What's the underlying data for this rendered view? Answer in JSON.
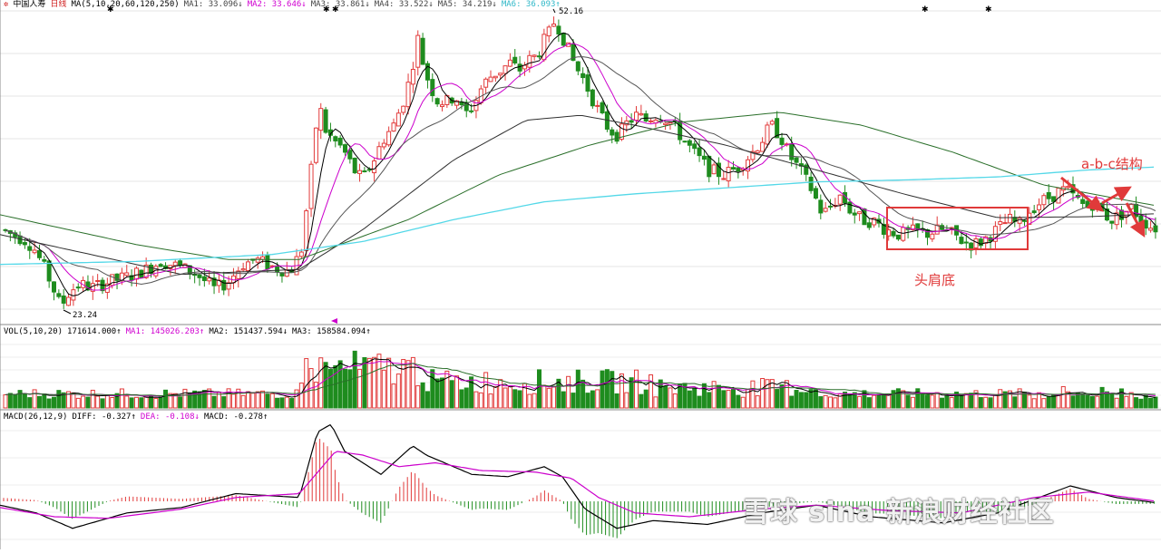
{
  "price_header": {
    "name": "中国人寿",
    "period": "日线",
    "ma_params": "MA(5,10,20,60,120,250)",
    "ma1": "MA1: 33.096↓",
    "ma2": "MA2: 33.646↓",
    "ma3": "MA3: 33.861↓",
    "ma4": "MA4: 33.522↓",
    "ma5": "MA5: 34.219↓",
    "ma6": "MA6: 36.093↑"
  },
  "volume_header": {
    "params": "VOL(5,10,20)",
    "vol": "171614.000↑",
    "ma1": "MA1: 145026.203↑",
    "ma2": "MA2: 151437.594↓",
    "ma3": "MA3: 158584.094↑"
  },
  "macd_header": {
    "params": "MACD(26,12,9)",
    "diff": "DIFF: -0.327↑",
    "dea": "DEA: -0.108↓",
    "macd": "MACD: -0.278↑"
  },
  "annotations": {
    "high_label": "52.16",
    "low_label": "23.24",
    "abc": "a-b-c结构",
    "head_shoulder": "头肩底"
  },
  "watermark": "雪球 sina 新浪财经社区",
  "colors": {
    "up": "#e23b3b",
    "down": "#1e8c1e",
    "ma_short": "#000000",
    "ma_mid": "#cc00cc",
    "ma_long": "#2a6f2a",
    "ma_250": "#54d8e8",
    "annotation": "#e03a3a"
  },
  "chart_data": [
    {
      "type": "candlestick",
      "title": "中国人寿 日线",
      "ylim": [
        22,
        53
      ],
      "price_path": [
        [
          0,
          31.0
        ],
        [
          12,
          30.5
        ],
        [
          25,
          30.0
        ],
        [
          35,
          29.2
        ],
        [
          45,
          27.5
        ],
        [
          55,
          25.5
        ],
        [
          65,
          23.24
        ],
        [
          75,
          24.8
        ],
        [
          85,
          25.5
        ],
        [
          100,
          25.2
        ],
        [
          120,
          25.8
        ],
        [
          140,
          26.3
        ],
        [
          160,
          27.0
        ],
        [
          175,
          27.8
        ],
        [
          195,
          27.3
        ],
        [
          215,
          26.5
        ],
        [
          235,
          25.0
        ],
        [
          250,
          25.8
        ],
        [
          265,
          27.5
        ],
        [
          280,
          28.0
        ],
        [
          300,
          27.2
        ],
        [
          318,
          26.8
        ],
        [
          330,
          28.8
        ],
        [
          340,
          36.0
        ],
        [
          345,
          40.5
        ],
        [
          350,
          43.5
        ],
        [
          357,
          41.0
        ],
        [
          365,
          40.0
        ],
        [
          372,
          39.5
        ],
        [
          380,
          38.5
        ],
        [
          388,
          37.0
        ],
        [
          398,
          36.0
        ],
        [
          410,
          38.0
        ],
        [
          420,
          40.0
        ],
        [
          432,
          41.5
        ],
        [
          445,
          44.5
        ],
        [
          452,
          47.0
        ],
        [
          458,
          50.5
        ],
        [
          465,
          47.5
        ],
        [
          472,
          45.5
        ],
        [
          480,
          44.0
        ],
        [
          490,
          43.8
        ],
        [
          500,
          44.5
        ],
        [
          510,
          42.5
        ],
        [
          520,
          43.5
        ],
        [
          530,
          45.5
        ],
        [
          540,
          46.5
        ],
        [
          550,
          47.0
        ],
        [
          560,
          47.8
        ],
        [
          570,
          47.0
        ],
        [
          580,
          48.0
        ],
        [
          590,
          48.5
        ],
        [
          598,
          50.0
        ],
        [
          605,
          51.0
        ],
        [
          610,
          52.16
        ],
        [
          618,
          50.5
        ],
        [
          625,
          49.0
        ],
        [
          632,
          47.5
        ],
        [
          642,
          46.0
        ],
        [
          652,
          44.0
        ],
        [
          660,
          42.5
        ],
        [
          670,
          41.0
        ],
        [
          680,
          40.5
        ],
        [
          690,
          41.8
        ],
        [
          700,
          42.5
        ],
        [
          710,
          42.0
        ],
        [
          720,
          42.5
        ],
        [
          730,
          42.3
        ],
        [
          740,
          41.5
        ],
        [
          752,
          40.0
        ],
        [
          765,
          38.5
        ],
        [
          780,
          37.0
        ],
        [
          795,
          36.5
        ],
        [
          810,
          37.2
        ],
        [
          825,
          38.5
        ],
        [
          838,
          40.0
        ],
        [
          848,
          41.5
        ],
        [
          858,
          40.5
        ],
        [
          868,
          38.5
        ],
        [
          880,
          37.0
        ],
        [
          893,
          35.0
        ],
        [
          905,
          32.5
        ],
        [
          915,
          33.5
        ],
        [
          925,
          34.5
        ],
        [
          935,
          33.0
        ],
        [
          948,
          32.0
        ],
        [
          962,
          31.8
        ],
        [
          975,
          31.0
        ],
        [
          990,
          30.5
        ],
        [
          1005,
          30.8
        ],
        [
          1020,
          30.6
        ],
        [
          1035,
          31.0
        ],
        [
          1050,
          30.5
        ],
        [
          1060,
          29.8
        ],
        [
          1070,
          29.5
        ],
        [
          1080,
          29.8
        ],
        [
          1090,
          30.5
        ],
        [
          1100,
          31.2
        ],
        [
          1110,
          32.0
        ],
        [
          1122,
          31.5
        ],
        [
          1132,
          32.8
        ],
        [
          1140,
          33.5
        ],
        [
          1150,
          34.0
        ],
        [
          1160,
          34.5
        ],
        [
          1168,
          35.0
        ],
        [
          1176,
          34.8
        ],
        [
          1185,
          34.0
        ],
        [
          1196,
          33.2
        ],
        [
          1205,
          33.8
        ],
        [
          1215,
          32.5
        ],
        [
          1225,
          32.0
        ],
        [
          1235,
          32.6
        ],
        [
          1245,
          33.2
        ],
        [
          1252,
          32.5
        ],
        [
          1260,
          31.8
        ],
        [
          1268,
          31.2
        ]
      ],
      "ma_long_path": [
        [
          0,
          32.5
        ],
        [
          150,
          29.5
        ],
        [
          250,
          28.0
        ],
        [
          330,
          28.0
        ],
        [
          450,
          32.0
        ],
        [
          550,
          36.5
        ],
        [
          650,
          39.5
        ],
        [
          750,
          41.8
        ],
        [
          860,
          42.8
        ],
        [
          950,
          41.5
        ],
        [
          1050,
          38.8
        ],
        [
          1150,
          35.5
        ],
        [
          1275,
          33.4
        ]
      ],
      "ma_250_path": [
        [
          0,
          27.5
        ],
        [
          150,
          27.8
        ],
        [
          300,
          28.5
        ],
        [
          400,
          29.8
        ],
        [
          500,
          32.0
        ],
        [
          600,
          33.8
        ],
        [
          700,
          34.6
        ],
        [
          800,
          35.2
        ],
        [
          900,
          35.8
        ],
        [
          1000,
          36.0
        ],
        [
          1100,
          36.3
        ],
        [
          1200,
          37.0
        ],
        [
          1275,
          37.3
        ]
      ],
      "ma_60_path": [
        [
          0,
          30.5
        ],
        [
          200,
          26.5
        ],
        [
          330,
          27.0
        ],
        [
          400,
          31.0
        ],
        [
          500,
          38.0
        ],
        [
          580,
          42.0
        ],
        [
          640,
          42.5
        ],
        [
          700,
          41.5
        ],
        [
          800,
          39.5
        ],
        [
          900,
          37.0
        ],
        [
          1000,
          34.5
        ],
        [
          1100,
          32.2
        ],
        [
          1200,
          32.3
        ],
        [
          1275,
          32.6
        ]
      ]
    },
    {
      "type": "bar",
      "title": "VOL(5,10,20)",
      "ylim": [
        0,
        100
      ]
    },
    {
      "type": "bar",
      "title": "MACD(26,12,9)",
      "ylim": [
        -1,
        1
      ],
      "diff_path": [
        [
          0,
          -0.05
        ],
        [
          40,
          -0.15
        ],
        [
          80,
          -0.35
        ],
        [
          140,
          -0.15
        ],
        [
          200,
          -0.08
        ],
        [
          260,
          0.1
        ],
        [
          330,
          0.05
        ],
        [
          350,
          0.9
        ],
        [
          365,
          1.0
        ],
        [
          380,
          0.65
        ],
        [
          420,
          0.35
        ],
        [
          455,
          0.72
        ],
        [
          470,
          0.6
        ],
        [
          520,
          0.35
        ],
        [
          560,
          0.32
        ],
        [
          600,
          0.45
        ],
        [
          620,
          0.32
        ],
        [
          645,
          -0.1
        ],
        [
          680,
          -0.35
        ],
        [
          720,
          -0.25
        ],
        [
          780,
          -0.3
        ],
        [
          840,
          -0.15
        ],
        [
          900,
          -0.05
        ],
        [
          960,
          -0.2
        ],
        [
          1040,
          -0.28
        ],
        [
          1100,
          -0.15
        ],
        [
          1180,
          0.2
        ],
        [
          1230,
          0.05
        ],
        [
          1275,
          -0.02
        ]
      ],
      "dea_path": [
        [
          0,
          -0.08
        ],
        [
          60,
          -0.2
        ],
        [
          120,
          -0.22
        ],
        [
          200,
          -0.1
        ],
        [
          260,
          0.05
        ],
        [
          330,
          0.1
        ],
        [
          370,
          0.65
        ],
        [
          400,
          0.6
        ],
        [
          440,
          0.45
        ],
        [
          480,
          0.5
        ],
        [
          530,
          0.4
        ],
        [
          590,
          0.38
        ],
        [
          630,
          0.3
        ],
        [
          660,
          0.05
        ],
        [
          700,
          -0.15
        ],
        [
          760,
          -0.2
        ],
        [
          840,
          -0.1
        ],
        [
          900,
          -0.05
        ],
        [
          980,
          -0.12
        ],
        [
          1060,
          -0.15
        ],
        [
          1140,
          0.05
        ],
        [
          1200,
          0.12
        ],
        [
          1275,
          0.0
        ]
      ]
    }
  ]
}
